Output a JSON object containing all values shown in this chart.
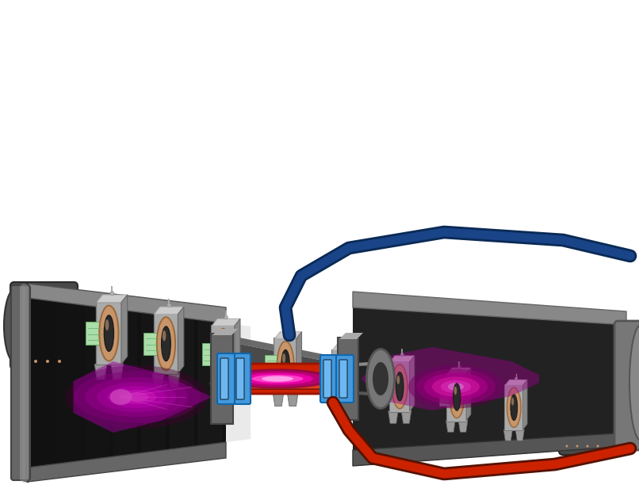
{
  "background_color": "#ffffff",
  "top": {
    "tube_dark": "#3d3d3d",
    "tube_mid": "#5a5a5a",
    "tube_light": "#7a7a7a",
    "coil_tan": "#c8956a",
    "coil_tan_dark": "#9a6a3a",
    "coil_tan_light": "#e0b080",
    "frame_gray": "#aaaaaa",
    "frame_dark": "#888888",
    "frame_light": "#cccccc",
    "green": "#aaddaa",
    "green_dark": "#66aa66",
    "left_cyl_color": "#555555",
    "right_cyl_color": "#555555"
  },
  "bottom": {
    "trough_outer": "#888888",
    "trough_mid": "#555555",
    "trough_inner": "#1a1a1a",
    "trough_highlight": "#aaaaaa",
    "plasma_purple": "#990099",
    "plasma_magenta": "#ee00cc",
    "plasma_bright": "#ff44ee",
    "plasma_core": "#ffbbff",
    "center_red": "#cc2200",
    "center_red_bright": "#ff4422",
    "magnet_blue": "#4499dd",
    "magnet_bright": "#88ccff",
    "gray_body": "#888888",
    "gray_dark": "#444444",
    "blue_cable": "#1a4488",
    "red_cable": "#cc2200",
    "connector_gray": "#777777"
  },
  "figsize": [
    8.06,
    6.31
  ],
  "dpi": 100
}
